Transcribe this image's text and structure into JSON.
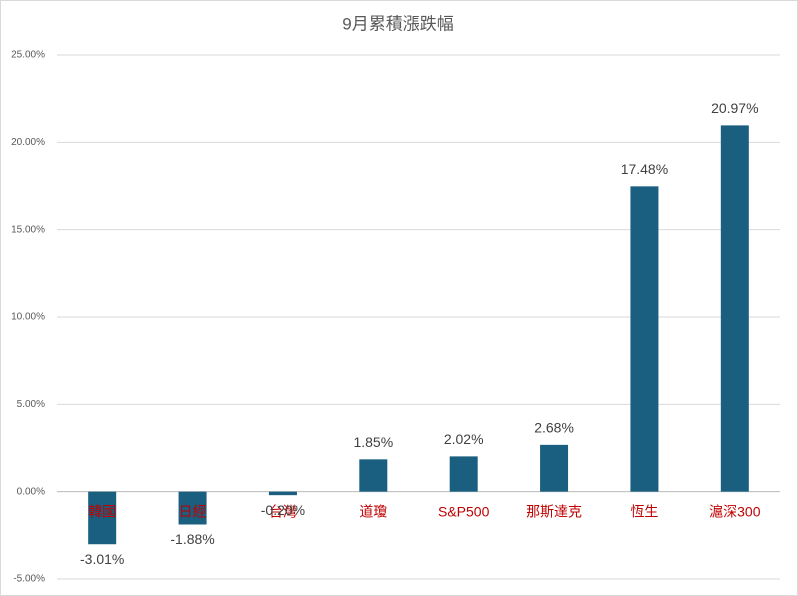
{
  "chart_data": {
    "type": "bar",
    "title": "9月累積漲跌幅",
    "categories": [
      "韓國",
      "日經",
      "台灣",
      "道瓊",
      "S&P500",
      "那斯達克",
      "恆生",
      "滬深300"
    ],
    "values": [
      -3.01,
      -1.88,
      -0.2,
      1.85,
      2.02,
      2.68,
      17.48,
      20.97
    ],
    "value_labels": [
      "-3.01%",
      "-1.88%",
      "-0.20%",
      "1.85%",
      "2.02%",
      "2.68%",
      "17.48%",
      "20.97%"
    ],
    "color": "#1a5e80",
    "category_color": "#c00000",
    "ylim": [
      -5,
      25
    ],
    "yticks": [
      {
        "value": -5,
        "label": "-5.00%"
      },
      {
        "value": 0,
        "label": "0.00%"
      },
      {
        "value": 5,
        "label": "5.00%"
      },
      {
        "value": 10,
        "label": "10.00%"
      },
      {
        "value": 15,
        "label": "15.00%"
      },
      {
        "value": 20,
        "label": "20.00%"
      },
      {
        "value": 25,
        "label": "25.00%"
      }
    ],
    "grid": true
  }
}
